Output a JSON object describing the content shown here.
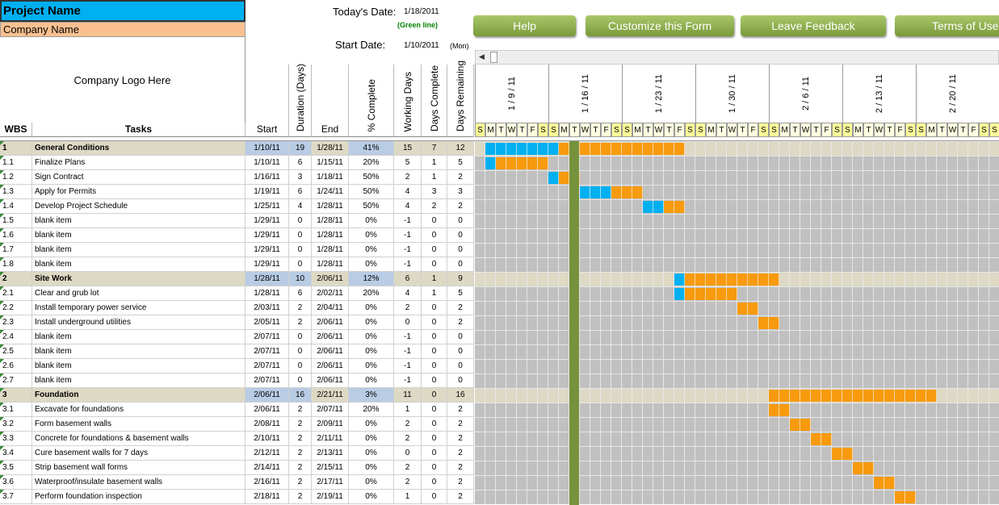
{
  "header": {
    "project_name": "Project Name",
    "company_name": "Company Name",
    "logo": "Company Logo Here",
    "todays_date_label": "Today's Date:",
    "todays_date": "1/18/2011",
    "green_line": "(Green line)",
    "start_date_label": "Start Date:",
    "start_date": "1/10/2011",
    "start_day": "(Mon)"
  },
  "buttons": [
    "Help",
    "Customize this Form",
    "Leave Feedback",
    "Terms of Use"
  ],
  "table": {
    "columns": [
      "WBS",
      "Tasks",
      "Start",
      "Duration (Days)",
      "End",
      "% Complete",
      "Working Days",
      "Days Complete",
      "Days Remaining"
    ],
    "weeks": [
      "1 / 9 / 11",
      "1 / 16 / 11",
      "1 / 23 / 11",
      "1 / 30 / 11",
      "2 / 6 / 11",
      "2 / 13 / 11",
      "2 / 20 / 11"
    ],
    "days": [
      "S",
      "M",
      "T",
      "W",
      "T",
      "F",
      "S"
    ],
    "rows": [
      [
        "1",
        "General Conditions",
        "1/10/11",
        19,
        "1/28/11",
        "41%",
        15,
        7,
        12
      ],
      [
        "1.1",
        "Finalize Plans",
        "1/10/11",
        6,
        "1/15/11",
        "20%",
        5,
        1,
        5
      ],
      [
        "1.2",
        "Sign Contract",
        "1/16/11",
        3,
        "1/18/11",
        "50%",
        2,
        1,
        2
      ],
      [
        "1.3",
        "Apply for Permits",
        "1/19/11",
        6,
        "1/24/11",
        "50%",
        4,
        3,
        3
      ],
      [
        "1.4",
        "Develop Project Schedule",
        "1/25/11",
        4,
        "1/28/11",
        "50%",
        4,
        2,
        2
      ],
      [
        "1.5",
        "blank item",
        "1/29/11",
        0,
        "1/28/11",
        "0%",
        -1,
        0,
        0
      ],
      [
        "1.6",
        "blank item",
        "1/29/11",
        0,
        "1/28/11",
        "0%",
        -1,
        0,
        0
      ],
      [
        "1.7",
        "blank item",
        "1/29/11",
        0,
        "1/28/11",
        "0%",
        -1,
        0,
        0
      ],
      [
        "1.8",
        "blank item",
        "1/29/11",
        0,
        "1/28/11",
        "0%",
        -1,
        0,
        0
      ],
      [
        "2",
        "Site Work",
        "1/28/11",
        10,
        "2/06/11",
        "12%",
        6,
        1,
        9
      ],
      [
        "2.1",
        "Clear and grub lot",
        "1/28/11",
        6,
        "2/02/11",
        "20%",
        4,
        1,
        5
      ],
      [
        "2.2",
        "Install temporary power service",
        "2/03/11",
        2,
        "2/04/11",
        "0%",
        2,
        0,
        2
      ],
      [
        "2.3",
        "Install underground utilities",
        "2/05/11",
        2,
        "2/06/11",
        "0%",
        0,
        0,
        2
      ],
      [
        "2.4",
        "blank item",
        "2/07/11",
        0,
        "2/06/11",
        "0%",
        -1,
        0,
        0
      ],
      [
        "2.5",
        "blank item",
        "2/07/11",
        0,
        "2/06/11",
        "0%",
        -1,
        0,
        0
      ],
      [
        "2.6",
        "blank item",
        "2/07/11",
        0,
        "2/06/11",
        "0%",
        -1,
        0,
        0
      ],
      [
        "2.7",
        "blank item",
        "2/07/11",
        0,
        "2/06/11",
        "0%",
        -1,
        0,
        0
      ],
      [
        "3",
        "Foundation",
        "2/06/11",
        16,
        "2/21/11",
        "3%",
        11,
        0,
        16
      ],
      [
        "3.1",
        "Excavate for foundations",
        "2/06/11",
        2,
        "2/07/11",
        "20%",
        1,
        0,
        2
      ],
      [
        "3.2",
        "Form basement walls",
        "2/08/11",
        2,
        "2/09/11",
        "0%",
        2,
        0,
        2
      ],
      [
        "3.3",
        "Concrete for foundations & basement walls",
        "2/10/11",
        2,
        "2/11/11",
        "0%",
        2,
        0,
        2
      ],
      [
        "3.4",
        "Cure basement walls for 7 days",
        "2/12/11",
        2,
        "2/13/11",
        "0%",
        0,
        0,
        2
      ],
      [
        "3.5",
        "Strip basement wall forms",
        "2/14/11",
        2,
        "2/15/11",
        "0%",
        2,
        0,
        2
      ],
      [
        "3.6",
        "Waterproof/insulate basement walls",
        "2/16/11",
        2,
        "2/17/11",
        "0%",
        2,
        0,
        2
      ],
      [
        "3.7",
        "Perform foundation inspection",
        "2/18/11",
        2,
        "2/19/11",
        "0%",
        1,
        0,
        2
      ]
    ]
  }
}
